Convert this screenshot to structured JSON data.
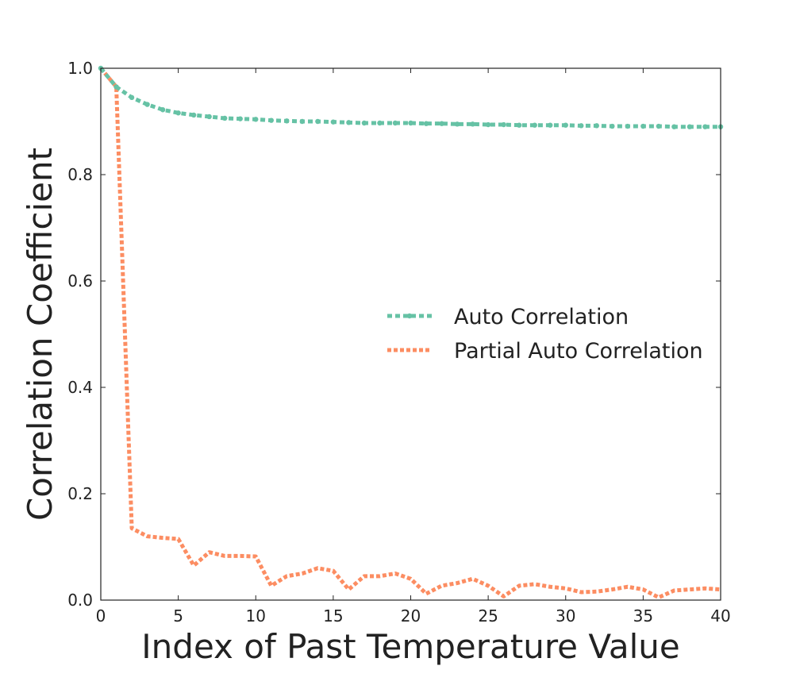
{
  "chart_data": {
    "type": "line",
    "title": "",
    "xlabel": "Index of Past Temperature Value",
    "ylabel": "Correlation Coefficient",
    "xlim": [
      0,
      40
    ],
    "ylim": [
      0.0,
      1.0
    ],
    "xticks": [
      0,
      5,
      10,
      15,
      20,
      25,
      30,
      35,
      40
    ],
    "yticks": [
      0.0,
      0.2,
      0.4,
      0.6,
      0.8,
      1.0
    ],
    "xtick_labels": [
      "0",
      "5",
      "10",
      "15",
      "20",
      "25",
      "30",
      "35",
      "40"
    ],
    "ytick_labels": [
      "0.0",
      "0.2",
      "0.4",
      "0.6",
      "0.8",
      "1.0"
    ],
    "grid": false,
    "legend_position": "center-right",
    "x": [
      0,
      1,
      2,
      3,
      4,
      5,
      6,
      7,
      8,
      9,
      10,
      11,
      12,
      13,
      14,
      15,
      16,
      17,
      18,
      19,
      20,
      21,
      22,
      23,
      24,
      25,
      26,
      27,
      28,
      29,
      30,
      31,
      32,
      33,
      34,
      35,
      36,
      37,
      38,
      39,
      40
    ],
    "series": [
      {
        "name": "Auto Correlation",
        "color": "#66c2a5",
        "marker": "dot",
        "values": [
          1.0,
          0.965,
          0.945,
          0.932,
          0.922,
          0.916,
          0.912,
          0.909,
          0.906,
          0.905,
          0.904,
          0.902,
          0.901,
          0.9,
          0.9,
          0.899,
          0.898,
          0.897,
          0.897,
          0.897,
          0.897,
          0.896,
          0.896,
          0.895,
          0.895,
          0.894,
          0.894,
          0.893,
          0.893,
          0.893,
          0.893,
          0.892,
          0.892,
          0.891,
          0.891,
          0.891,
          0.891,
          0.89,
          0.89,
          0.89,
          0.89
        ]
      },
      {
        "name": "Partial Auto Correlation",
        "color": "#fc8d62",
        "marker": "none",
        "values": [
          1.0,
          0.965,
          0.135,
          0.12,
          0.117,
          0.115,
          0.065,
          0.09,
          0.083,
          0.083,
          0.082,
          0.027,
          0.045,
          0.05,
          0.06,
          0.055,
          0.02,
          0.045,
          0.045,
          0.05,
          0.04,
          0.012,
          0.027,
          0.032,
          0.04,
          0.027,
          0.007,
          0.027,
          0.03,
          0.025,
          0.022,
          0.015,
          0.016,
          0.02,
          0.025,
          0.02,
          0.005,
          0.018,
          0.02,
          0.022,
          0.02
        ]
      }
    ]
  }
}
